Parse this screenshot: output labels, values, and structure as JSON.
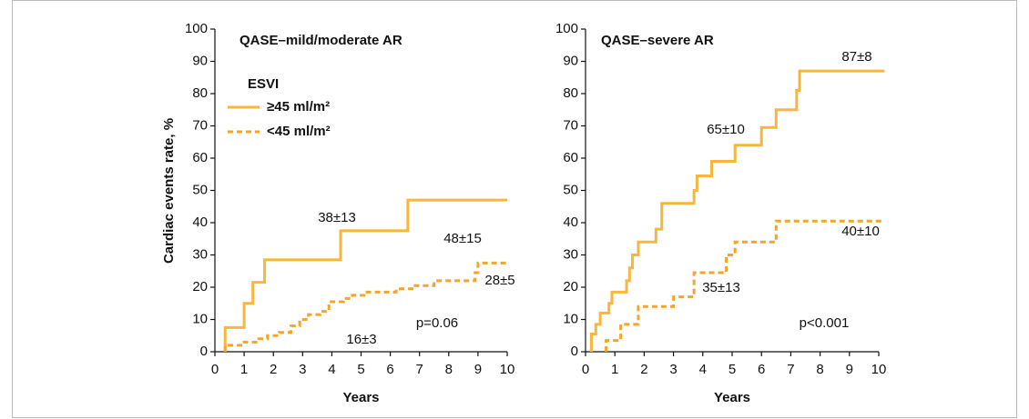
{
  "chart_data": [
    {
      "type": "step",
      "title": "QASE–mild/moderate AR",
      "xlabel": "Years",
      "ylabel": "Cardiac events rate, %",
      "legend_title": "ESVI",
      "xlim": [
        0,
        10
      ],
      "ylim": [
        0,
        100
      ],
      "xticks": [
        0,
        1,
        2,
        3,
        4,
        5,
        6,
        7,
        8,
        9,
        10
      ],
      "yticks": [
        0,
        10,
        20,
        30,
        40,
        50,
        60,
        70,
        80,
        90,
        100
      ],
      "series": [
        {
          "name": "≥45 ml/m²",
          "color": "#f6b73c",
          "linestyle": "solid",
          "x": [
            0.35,
            0.35,
            1.0,
            1.3,
            1.7,
            4.3,
            6.6,
            10
          ],
          "values": [
            0,
            7.5,
            15,
            21.5,
            28.5,
            37.5,
            47,
            47
          ]
        },
        {
          "name": "<45 ml/m²",
          "color": "#f2a52a",
          "linestyle": "dashed",
          "x": [
            0.35,
            0.35,
            1.0,
            1.5,
            1.8,
            2.2,
            2.6,
            2.9,
            3.2,
            3.6,
            3.9,
            4.4,
            4.7,
            5.1,
            6.2,
            6.8,
            7.5,
            8.9,
            9.0,
            10
          ],
          "values": [
            0,
            2,
            3,
            4,
            5,
            6,
            8,
            10,
            11.5,
            12.5,
            15.5,
            16.5,
            17.5,
            18.5,
            19.5,
            20.5,
            22,
            24.5,
            27.5,
            27.5
          ]
        }
      ],
      "annotations": [
        "38±13",
        "48±15",
        "16±3",
        "28±5",
        "p=0.06"
      ]
    },
    {
      "type": "step",
      "title": "QASE–severe AR",
      "xlabel": "Years",
      "xlim": [
        0,
        10
      ],
      "ylim": [
        0,
        100
      ],
      "xticks": [
        0,
        1,
        2,
        3,
        4,
        5,
        6,
        7,
        8,
        9,
        10
      ],
      "yticks": [
        0,
        10,
        20,
        30,
        40,
        50,
        60,
        70,
        80,
        90,
        100
      ],
      "series": [
        {
          "color": "#f6b73c",
          "linestyle": "solid",
          "x": [
            0.2,
            0.2,
            0.35,
            0.5,
            0.8,
            0.9,
            1.4,
            1.5,
            1.6,
            1.8,
            2.4,
            2.6,
            3.7,
            3.8,
            4.3,
            5.1,
            6.0,
            6.5,
            7.2,
            7.3,
            10.2
          ],
          "values": [
            0,
            5.5,
            8.5,
            12,
            15,
            18.5,
            22,
            26,
            30,
            34,
            38,
            46,
            50,
            54.5,
            59,
            64,
            69.5,
            75,
            81,
            87,
            87
          ]
        },
        {
          "color": "#f2a52a",
          "linestyle": "dashed",
          "x": [
            0.7,
            0.7,
            1.2,
            1.8,
            3.0,
            3.7,
            4.8,
            5.1,
            6.5,
            10.2
          ],
          "values": [
            0,
            3.5,
            8.5,
            14,
            17,
            24.5,
            30,
            34,
            40.5,
            40.5
          ]
        }
      ],
      "annotations": [
        "87±8",
        "65±10",
        "40±10",
        "35±13",
        "p<0.001"
      ]
    }
  ]
}
